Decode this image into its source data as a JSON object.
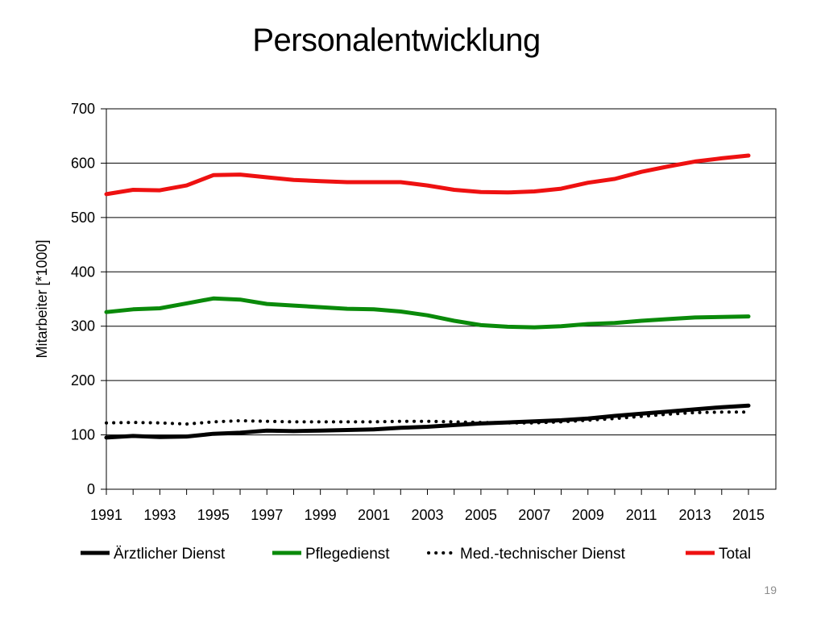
{
  "slide": {
    "title": "Personalentwicklung",
    "page_number": "19"
  },
  "chart_data": {
    "type": "line",
    "title": "",
    "xlabel": "",
    "ylabel": "Mitarbeiter [*1000]",
    "ylim": [
      0,
      700
    ],
    "yticks": [
      0,
      100,
      200,
      300,
      400,
      500,
      600,
      700
    ],
    "xtick_labels": [
      "1991",
      "1993",
      "1995",
      "1997",
      "1999",
      "2001",
      "2003",
      "2005",
      "2007",
      "2009",
      "2011",
      "2013",
      "2015"
    ],
    "grid": "horizontal",
    "legend_position": "bottom",
    "x": [
      1991,
      1992,
      1993,
      1994,
      1995,
      1996,
      1997,
      1998,
      1999,
      2000,
      2001,
      2002,
      2003,
      2004,
      2005,
      2006,
      2007,
      2008,
      2009,
      2010,
      2011,
      2012,
      2013,
      2014,
      2015
    ],
    "series": [
      {
        "name": "Ärztlicher Dienst",
        "color": "#000000",
        "style": "solid",
        "values": [
          95,
          98,
          96,
          97,
          102,
          104,
          108,
          107,
          108,
          109,
          110,
          113,
          115,
          118,
          121,
          123,
          125,
          127,
          130,
          135,
          139,
          143,
          147,
          151,
          154
        ]
      },
      {
        "name": "Pflegedienst",
        "color": "#0a8a0a",
        "style": "solid",
        "values": [
          326,
          331,
          333,
          342,
          351,
          349,
          341,
          338,
          335,
          332,
          331,
          327,
          320,
          310,
          302,
          299,
          298,
          300,
          304,
          306,
          310,
          313,
          316,
          317,
          318
        ]
      },
      {
        "name": "Med.-technischer Dienst",
        "color": "#000000",
        "style": "dotted",
        "values": [
          122,
          123,
          122,
          120,
          124,
          126,
          125,
          124,
          124,
          124,
          124,
          125,
          125,
          124,
          123,
          122,
          122,
          124,
          127,
          130,
          134,
          138,
          141,
          142,
          142
        ]
      },
      {
        "name": "Total",
        "color": "#ee1111",
        "style": "solid",
        "values": [
          543,
          551,
          550,
          559,
          578,
          579,
          574,
          569,
          567,
          565,
          565,
          565,
          559,
          551,
          547,
          546,
          548,
          553,
          564,
          571,
          584,
          594,
          603,
          609,
          614
        ]
      }
    ]
  }
}
